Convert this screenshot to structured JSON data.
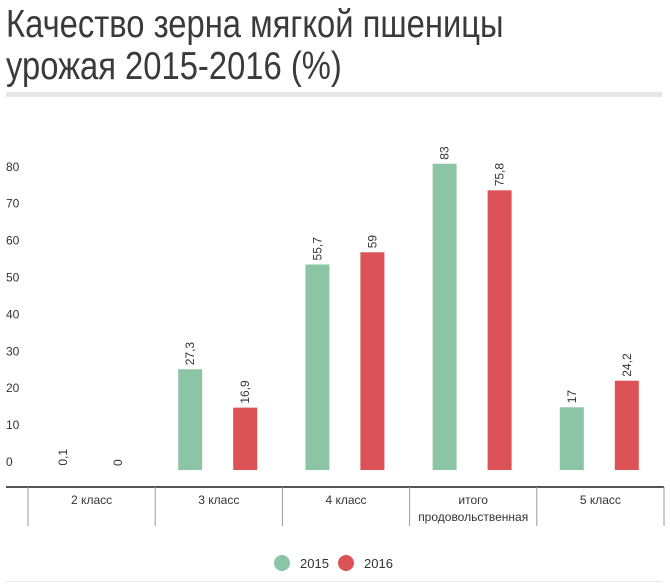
{
  "title_lines": [
    "Качество зерна мягкой пшеницы",
    "урожая 2015-2016 (%)"
  ],
  "chart_data": {
    "type": "bar",
    "title": "Качество зерна мягкой пшеницы урожая 2015-2016 (%)",
    "categories": [
      "2 класс",
      "3 класс",
      "4 класс",
      "итого продовольственная",
      "5 класс"
    ],
    "series": [
      {
        "name": "2015",
        "color": "#8cc4a6",
        "values": [
          0.1,
          27.3,
          55.7,
          83,
          17
        ],
        "labels": [
          "0,1",
          "27,3",
          "55,7",
          "83",
          "17"
        ]
      },
      {
        "name": "2016",
        "color": "#dc5256",
        "values": [
          0,
          16.9,
          59,
          75.8,
          24.2
        ],
        "labels": [
          "0",
          "16,9",
          "59",
          "75,8",
          "24,2"
        ]
      }
    ],
    "yticks": [
      0,
      10,
      20,
      30,
      40,
      50,
      60,
      70,
      80
    ],
    "ylim": [
      0,
      83
    ],
    "legend": "bottom-center",
    "xlabel": "",
    "ylabel": ""
  }
}
